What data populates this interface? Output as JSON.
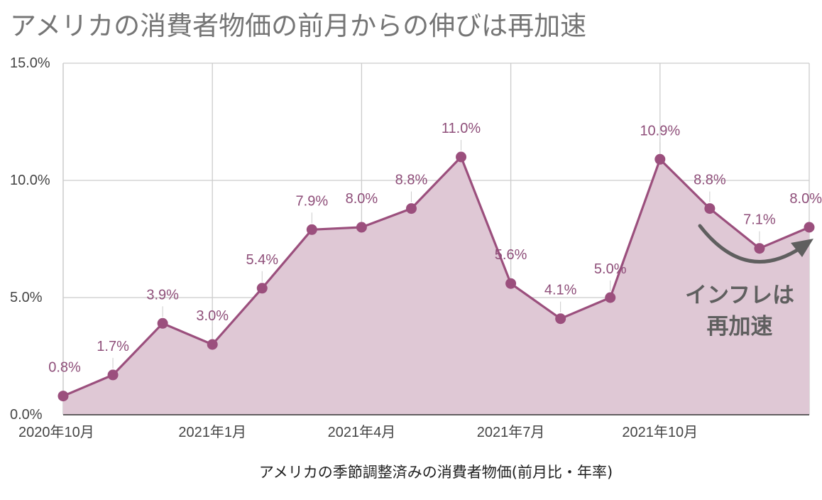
{
  "title": "アメリカの消費者物価の前月からの伸びは再加速",
  "chart_data": {
    "type": "area",
    "x": [
      "2020年10月",
      "2020年11月",
      "2020年12月",
      "2021年1月",
      "2021年2月",
      "2021年3月",
      "2021年4月",
      "2021年5月",
      "2021年6月",
      "2021年7月",
      "2021年8月",
      "2021年9月",
      "2021年10月",
      "2021年11月",
      "2021年12月",
      "2022年1月"
    ],
    "values": [
      0.8,
      1.7,
      3.9,
      3.0,
      5.4,
      7.9,
      8.0,
      8.8,
      11.0,
      5.6,
      4.1,
      5.0,
      10.9,
      8.8,
      7.1,
      8.0
    ],
    "data_labels": [
      "0.8%",
      "1.7%",
      "3.9%",
      "3.0%",
      "5.4%",
      "7.9%",
      "8.0%",
      "8.8%",
      "11.0%",
      "5.6%",
      "4.1%",
      "5.0%",
      "10.9%",
      "8.8%",
      "7.1%",
      "8.0%"
    ],
    "ylim": [
      0,
      15
    ],
    "yticks": [
      0,
      5,
      10,
      15
    ],
    "ytick_labels": [
      "0.0%",
      "5.0%",
      "10.0%",
      "15.0%"
    ],
    "xtick_labels": [
      {
        "index": 0,
        "label": "2020年10月"
      },
      {
        "index": 3,
        "label": "2021年1月"
      },
      {
        "index": 6,
        "label": "2021年4月"
      },
      {
        "index": 9,
        "label": "2021年7月"
      },
      {
        "index": 12,
        "label": "2021年10月"
      }
    ],
    "xlabel": "アメリカの季節調整済みの消費者物価(前月比・年率)",
    "ylabel": "",
    "grid": true,
    "legend": "none",
    "annotation": {
      "lines": [
        "インフレは",
        "再加速"
      ]
    },
    "colors": {
      "line": "#9b4f7d",
      "fill": "#dfc8d5",
      "grid": "#cccccc",
      "annotation": "#5f5f5f"
    }
  }
}
